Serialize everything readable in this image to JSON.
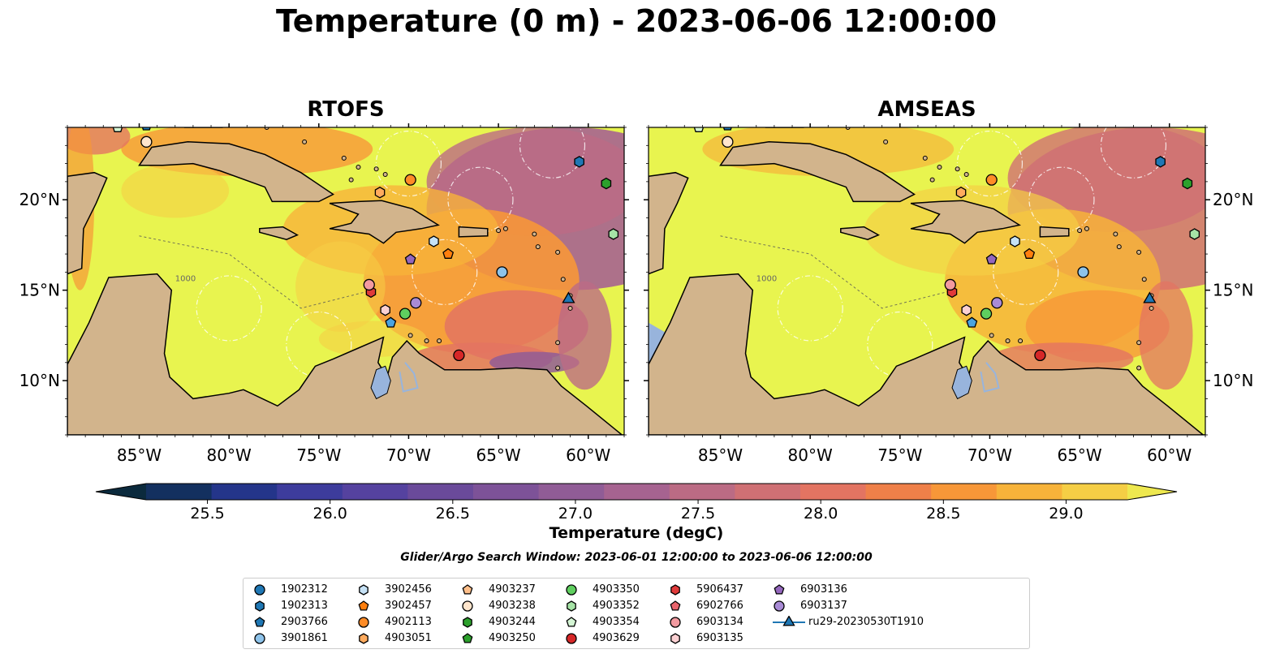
{
  "title": "Temperature (0 m) - 2023-06-06 12:00:00",
  "panels": [
    {
      "title": "RTOFS"
    },
    {
      "title": "AMSEAS"
    }
  ],
  "colors": {
    "land": "#d2b48c",
    "ocean_warm": "#e8f44f",
    "water_blue": "#98b4dc"
  },
  "chart_data": {
    "type": "heatmap",
    "variable": "Temperature (0 m)",
    "xlim": [
      -89,
      -58
    ],
    "ylim": [
      7,
      24
    ],
    "x_ticks": [
      "85°W",
      "80°W",
      "75°W",
      "70°W",
      "65°W",
      "60°W"
    ],
    "x_tick_values": [
      -85,
      -80,
      -75,
      -70,
      -65,
      -60
    ],
    "y_ticks": [
      "10°N",
      "15°N",
      "20°N"
    ],
    "y_tick_values": [
      10,
      15,
      20
    ],
    "colorbar": {
      "label": "Temperature (degC)",
      "min": 25.25,
      "max": 29.25,
      "ticks": [
        "25.5",
        "26.0",
        "26.5",
        "27.0",
        "27.5",
        "28.0",
        "28.5",
        "29.0"
      ],
      "tick_values": [
        25.5,
        26.0,
        26.5,
        27.0,
        27.5,
        28.0,
        28.5,
        29.0
      ],
      "colors": [
        "#0b2a3d",
        "#13305f",
        "#24358a",
        "#3d3c9c",
        "#55429f",
        "#6a4a9a",
        "#7d5298",
        "#905c96",
        "#a66390",
        "#bb6b84",
        "#cf7074",
        "#e37462",
        "#ef8049",
        "#f79738",
        "#f7b33a",
        "#f5ce45",
        "#eee84f"
      ]
    },
    "contours": [
      "100",
      "1000",
      "2000",
      "3000"
    ],
    "platforms": [
      {
        "id": "1902312",
        "type": "argo",
        "marker": "circle",
        "color": "#1f77b4",
        "lon": -60.5,
        "lat": 22.0,
        "shown": false
      },
      {
        "id": "1902313",
        "type": "argo",
        "marker": "hexagon",
        "color": "#1f77b4",
        "lon": -60.5,
        "lat": 22.1
      },
      {
        "id": "2903766",
        "type": "argo",
        "marker": "pentagon",
        "color": "#1f77b4",
        "lon": -84.6,
        "lat": 24.1
      },
      {
        "id": "3901861",
        "type": "argo",
        "marker": "circle",
        "color": "#8ec3ea",
        "lon": -64.8,
        "lat": 16.0
      },
      {
        "id": "3902456",
        "type": "argo",
        "marker": "hexagon",
        "color": "#c6e2f6",
        "lon": -68.6,
        "lat": 17.7
      },
      {
        "id": "3902457",
        "type": "argo",
        "marker": "pentagon",
        "color": "#ff7f0e",
        "lon": -67.8,
        "lat": 17.0
      },
      {
        "id": "4902113",
        "type": "argo",
        "marker": "circle",
        "color": "#ff8c27",
        "lon": -69.9,
        "lat": 21.1
      },
      {
        "id": "4903051",
        "type": "argo",
        "marker": "hexagon",
        "color": "#ffab5e",
        "lon": -71.6,
        "lat": 20.4
      },
      {
        "id": "4903237",
        "type": "argo",
        "marker": "pentagon",
        "color": "#ffbf8a",
        "lon": -69.0,
        "lat": 15.5,
        "shown": false
      },
      {
        "id": "4903238",
        "type": "argo",
        "marker": "circle",
        "color": "#ffe5cc",
        "lon": -84.6,
        "lat": 23.2
      },
      {
        "id": "4903244",
        "type": "argo",
        "marker": "hexagon",
        "color": "#2ca02c",
        "lon": -59.0,
        "lat": 20.9
      },
      {
        "id": "4903250",
        "type": "argo",
        "marker": "pentagon",
        "color": "#2ca02c",
        "lon": -60.0,
        "lat": 21.5,
        "shown": false
      },
      {
        "id": "4903350",
        "type": "argo",
        "marker": "circle",
        "color": "#5fcf5f",
        "lon": -70.2,
        "lat": 13.7
      },
      {
        "id": "4903352",
        "type": "argo",
        "marker": "hexagon",
        "color": "#a6e3a6",
        "lon": -58.6,
        "lat": 18.1
      },
      {
        "id": "4903354",
        "type": "argo",
        "marker": "pentagon",
        "color": "#d4f5d4",
        "lon": -86.2,
        "lat": 24.0
      },
      {
        "id": "4903629",
        "type": "argo",
        "marker": "circle",
        "color": "#d62728",
        "lon": -67.2,
        "lat": 11.4
      },
      {
        "id": "5906437",
        "type": "argo",
        "marker": "hexagon",
        "color": "#e03a3a",
        "lon": -72.1,
        "lat": 14.9
      },
      {
        "id": "6902766",
        "type": "argo",
        "marker": "pentagon",
        "color": "#e8646c",
        "lon": -61.0,
        "lat": 16.5,
        "shown": false
      },
      {
        "id": "6903134",
        "type": "argo",
        "marker": "circle",
        "color": "#f29aa0",
        "lon": -72.2,
        "lat": 15.3
      },
      {
        "id": "6903135",
        "type": "argo",
        "marker": "hexagon",
        "color": "#fbd0d2",
        "lon": -71.3,
        "lat": 13.9
      },
      {
        "id": "6903136",
        "type": "argo",
        "marker": "pentagon",
        "color": "#9467bd",
        "lon": -69.9,
        "lat": 16.7
      },
      {
        "id": "6903137",
        "type": "argo",
        "marker": "circle",
        "color": "#a98bd6",
        "lon": -69.6,
        "lat": 14.3
      },
      {
        "id": "2903766b",
        "type": "argo",
        "marker": "pentagon",
        "color": "#4aa3df",
        "lon": -71.0,
        "lat": 13.2,
        "shown": true,
        "legend": false
      },
      {
        "id": "ru29-20230530T1910",
        "type": "glider",
        "marker": "triangle",
        "color": "#1f77b4",
        "lon": -61.1,
        "lat": 14.5
      }
    ]
  },
  "colorbar_label": "Temperature (degC)",
  "search_window": "Glider/Argo Search Window: 2023-06-01 12:00:00 to 2023-06-06 12:00:00",
  "legend_items": [
    "1902312",
    "1902313",
    "2903766",
    "3901861",
    "3902456",
    "3902457",
    "4902113",
    "4903051",
    "4903237",
    "4903238",
    "4903244",
    "4903250",
    "4903350",
    "4903352",
    "4903354",
    "4903629",
    "5906437",
    "6902766",
    "6903134",
    "6903135",
    "6903136",
    "6903137",
    "ru29-20230530T1910"
  ]
}
